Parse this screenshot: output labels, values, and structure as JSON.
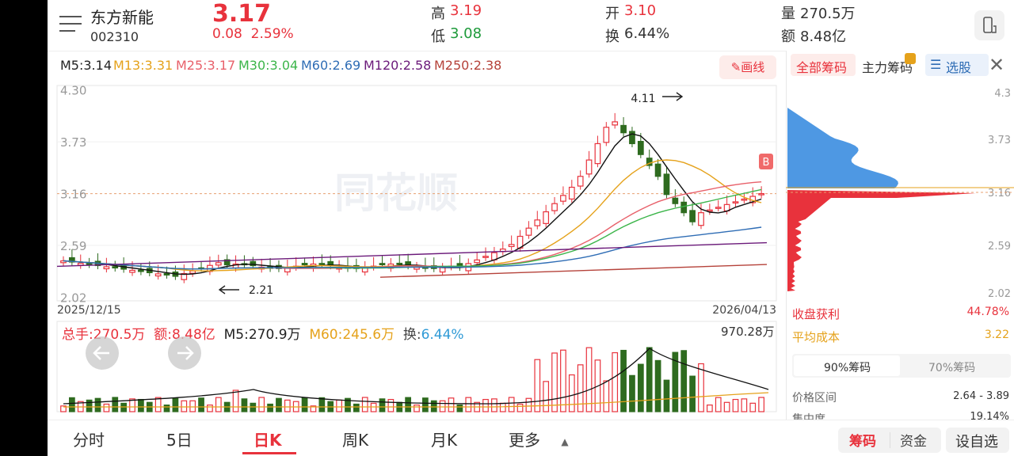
{
  "header": {
    "stock_name": "东方新能",
    "stock_code": "002310",
    "price": "3.17",
    "change": "0.08",
    "change_pct": "2.59%",
    "high_label": "高",
    "high": "3.19",
    "low_label": "低",
    "low": "3.08",
    "open_label": "开",
    "open": "3.10",
    "turnover_label": "换",
    "turnover": "6.44%",
    "volume_label": "量",
    "volume": "270.5万",
    "amount_label": "额",
    "amount": "8.48亿"
  },
  "ma": {
    "items": [
      {
        "label": "M5:3.14",
        "color": "#222222"
      },
      {
        "label": "M13:3.31",
        "color": "#e5a21b"
      },
      {
        "label": "M25:3.17",
        "color": "#e8606a"
      },
      {
        "label": "M30:3.04",
        "color": "#3cb54a"
      },
      {
        "label": "M60:2.69",
        "color": "#2f6db5"
      },
      {
        "label": "M120:2.58",
        "color": "#6b1a7a"
      },
      {
        "label": "M250:2.38",
        "color": "#b5423a"
      }
    ],
    "draw_button": "画线"
  },
  "kline": {
    "y_ticks": [
      "4.30",
      "3.73",
      "3.16",
      "2.59",
      "2.02"
    ],
    "date_start": "2025/12/15",
    "date_end": "2026/04/13",
    "high_mark": "4.11",
    "low_mark": "2.21",
    "watermark": "同花顺",
    "signal": "B"
  },
  "volume": {
    "total_label": "总手:270.5万",
    "amount_label": "额:8.48亿",
    "m5_label": "M5:270.9万",
    "m60_label": "M60:245.6万",
    "turnover_label": "换:",
    "turnover_value": "6.44%",
    "max_label": "970.28万"
  },
  "chips": {
    "tabs": [
      "全部筹码",
      "主力筹码",
      "选股"
    ],
    "y_ticks": [
      "4.3",
      "3.73",
      "3.16",
      "2.59",
      "2.02"
    ],
    "profit_label": "收盘获利",
    "profit_value": "44.78%",
    "avg_cost_label": "平均成本",
    "avg_cost_value": "3.22",
    "seg": [
      "90%筹码",
      "70%筹码"
    ],
    "range_label": "价格区间",
    "range_value": "2.64 - 3.89",
    "conc_label": "集中度",
    "conc_value": "19.14%"
  },
  "bottom": {
    "tabs": [
      "分时",
      "5日",
      "日K",
      "周K",
      "月K",
      "更多"
    ],
    "active": "日K",
    "chips_btn": "筹码",
    "funds_btn": "资金",
    "settings": "设自选"
  },
  "colors": {
    "up": "#e8323c",
    "down": "#2e7d1f",
    "accent": "#2f6db5"
  }
}
